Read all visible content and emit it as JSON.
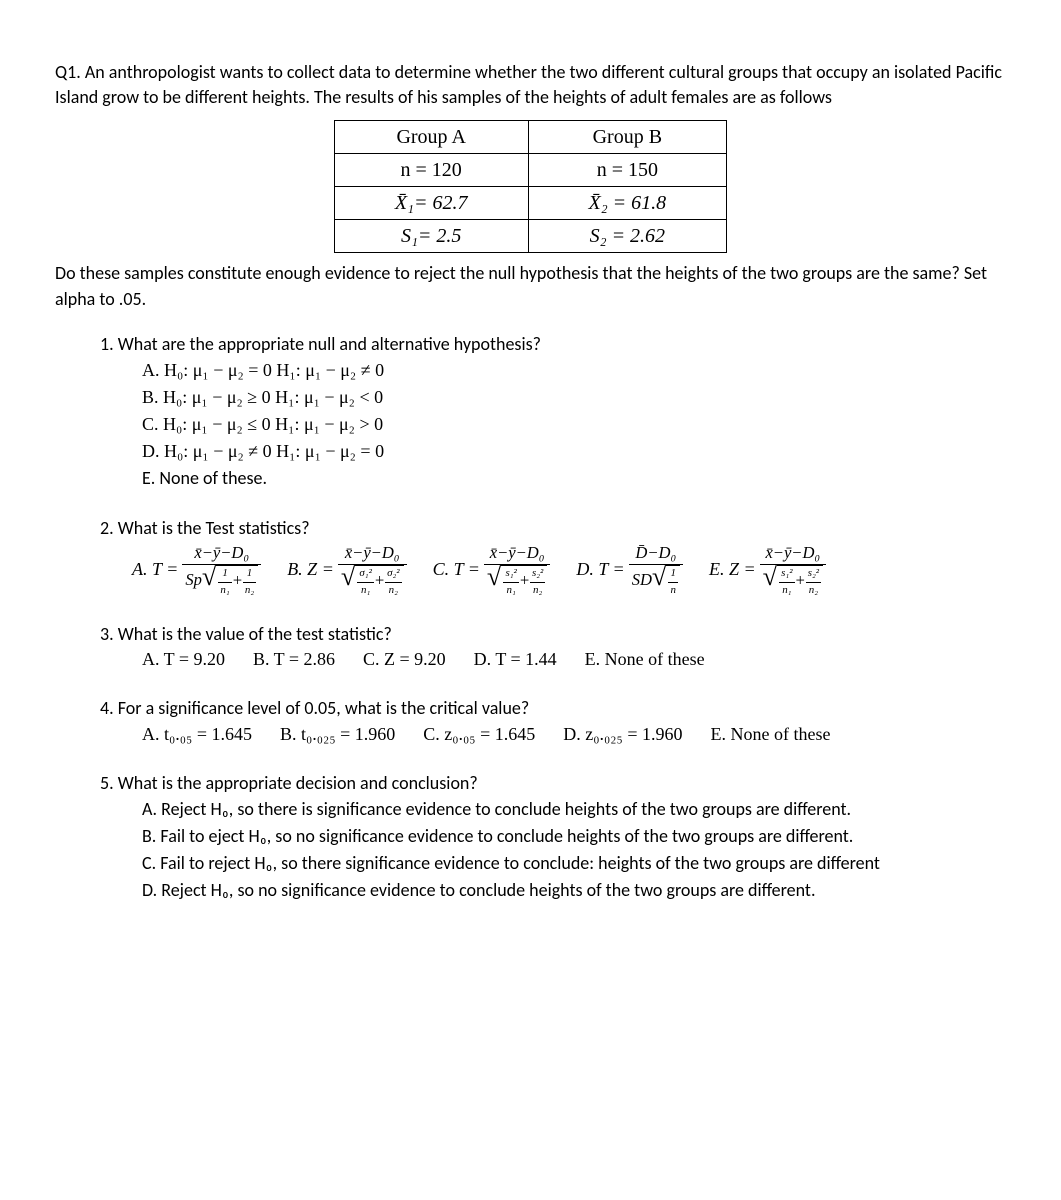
{
  "q1": {
    "prompt": "Q1. An anthropologist wants to collect data to determine whether the two different cultural groups that occupy an isolated Pacific Island grow to be different heights.  The results of his samples of the heights of adult females are as follows",
    "table": {
      "columns": [
        "Group A",
        "Group B"
      ],
      "rows": [
        [
          "n = 120",
          "n = 150"
        ],
        [
          "X̄₁= 62.7",
          "X̄₂ = 61.8"
        ],
        [
          "S₁= 2.5",
          "S₂ = 2.62"
        ]
      ],
      "border_color": "#000000",
      "cell_fontsize": 20,
      "font_family": "Times New Roman"
    },
    "followup": "Do these samples constitute enough evidence to reject the null hypothesis that the heights of the two groups are the same?  Set alpha to .05."
  },
  "sub1": {
    "title": "1.   What are the appropriate null and alternative hypothesis?",
    "opts": [
      "A.   H₀: μ₁ − μ₂ = 0    H₁: μ₁ − μ₂ ≠ 0",
      "B.   H₀: μ₁ − μ₂ ≥ 0    H₁: μ₁ − μ₂ < 0",
      "C.   H₀: μ₁ − μ₂ ≤ 0    H₁: μ₁ − μ₂ > 0",
      "D.   H₀: μ₁ − μ₂ ≠ 0    H₁: μ₁ − μ₂ = 0",
      "E.    None of these."
    ]
  },
  "sub2": {
    "title": "2.   What is the Test statistics?",
    "labels": {
      "A": "A. T =",
      "B": "B.  Z =",
      "C": "C.  T =",
      "D": "D. T =",
      "E": "E.   Z ="
    },
    "numerators": {
      "xyd": "x̄−ȳ−D₀",
      "dd": "D̄−D₀"
    },
    "den": {
      "sp": "Sp",
      "sd": "SD",
      "one_n1": "1",
      "n1": "n₁",
      "one_n2": "1",
      "n2": "n₂",
      "one_n": "1",
      "n": "n",
      "sigma1": "σ₁²",
      "sigma2": "σ₂²",
      "s1": "s₁²",
      "s2": "s₂²"
    }
  },
  "sub3": {
    "title": "3.   What is the value of the test statistic?",
    "opts": {
      "A": "A.   T = 9.20",
      "B": "B. T = 2.86",
      "C": "C. Z = 9.20",
      "D": "D. T = 1.44",
      "E": "E. None of these"
    }
  },
  "sub4": {
    "title": "4.   For a significance level of 0.05, what is the critical value?",
    "opts": {
      "A": "A. t₀.₀₅ = 1.645",
      "B": "B. t₀.₀₂₅ = 1.960",
      "C": "C. z₀.₀₅ = 1.645",
      "D": "D. z₀.₀₂₅ = 1.960",
      "E": "E. None of these"
    }
  },
  "sub5": {
    "title": "5.   What is the appropriate decision and conclusion?",
    "opts": [
      "A.   Reject H₀, so there is significance evidence to conclude heights of the two groups are different.",
      "B.   Fail to eject H₀, so no significance evidence to conclude heights of the two groups are different.",
      "C.   Fail to reject H₀, so there significance evidence to conclude: heights of the two groups are different",
      "D.   Reject H₀, so no significance evidence to conclude heights of the two groups are different."
    ]
  },
  "style": {
    "body_fontsize": 18,
    "body_font": "Calibri",
    "math_font": "Cambria Math",
    "text_color": "#000000",
    "background_color": "#ffffff"
  }
}
